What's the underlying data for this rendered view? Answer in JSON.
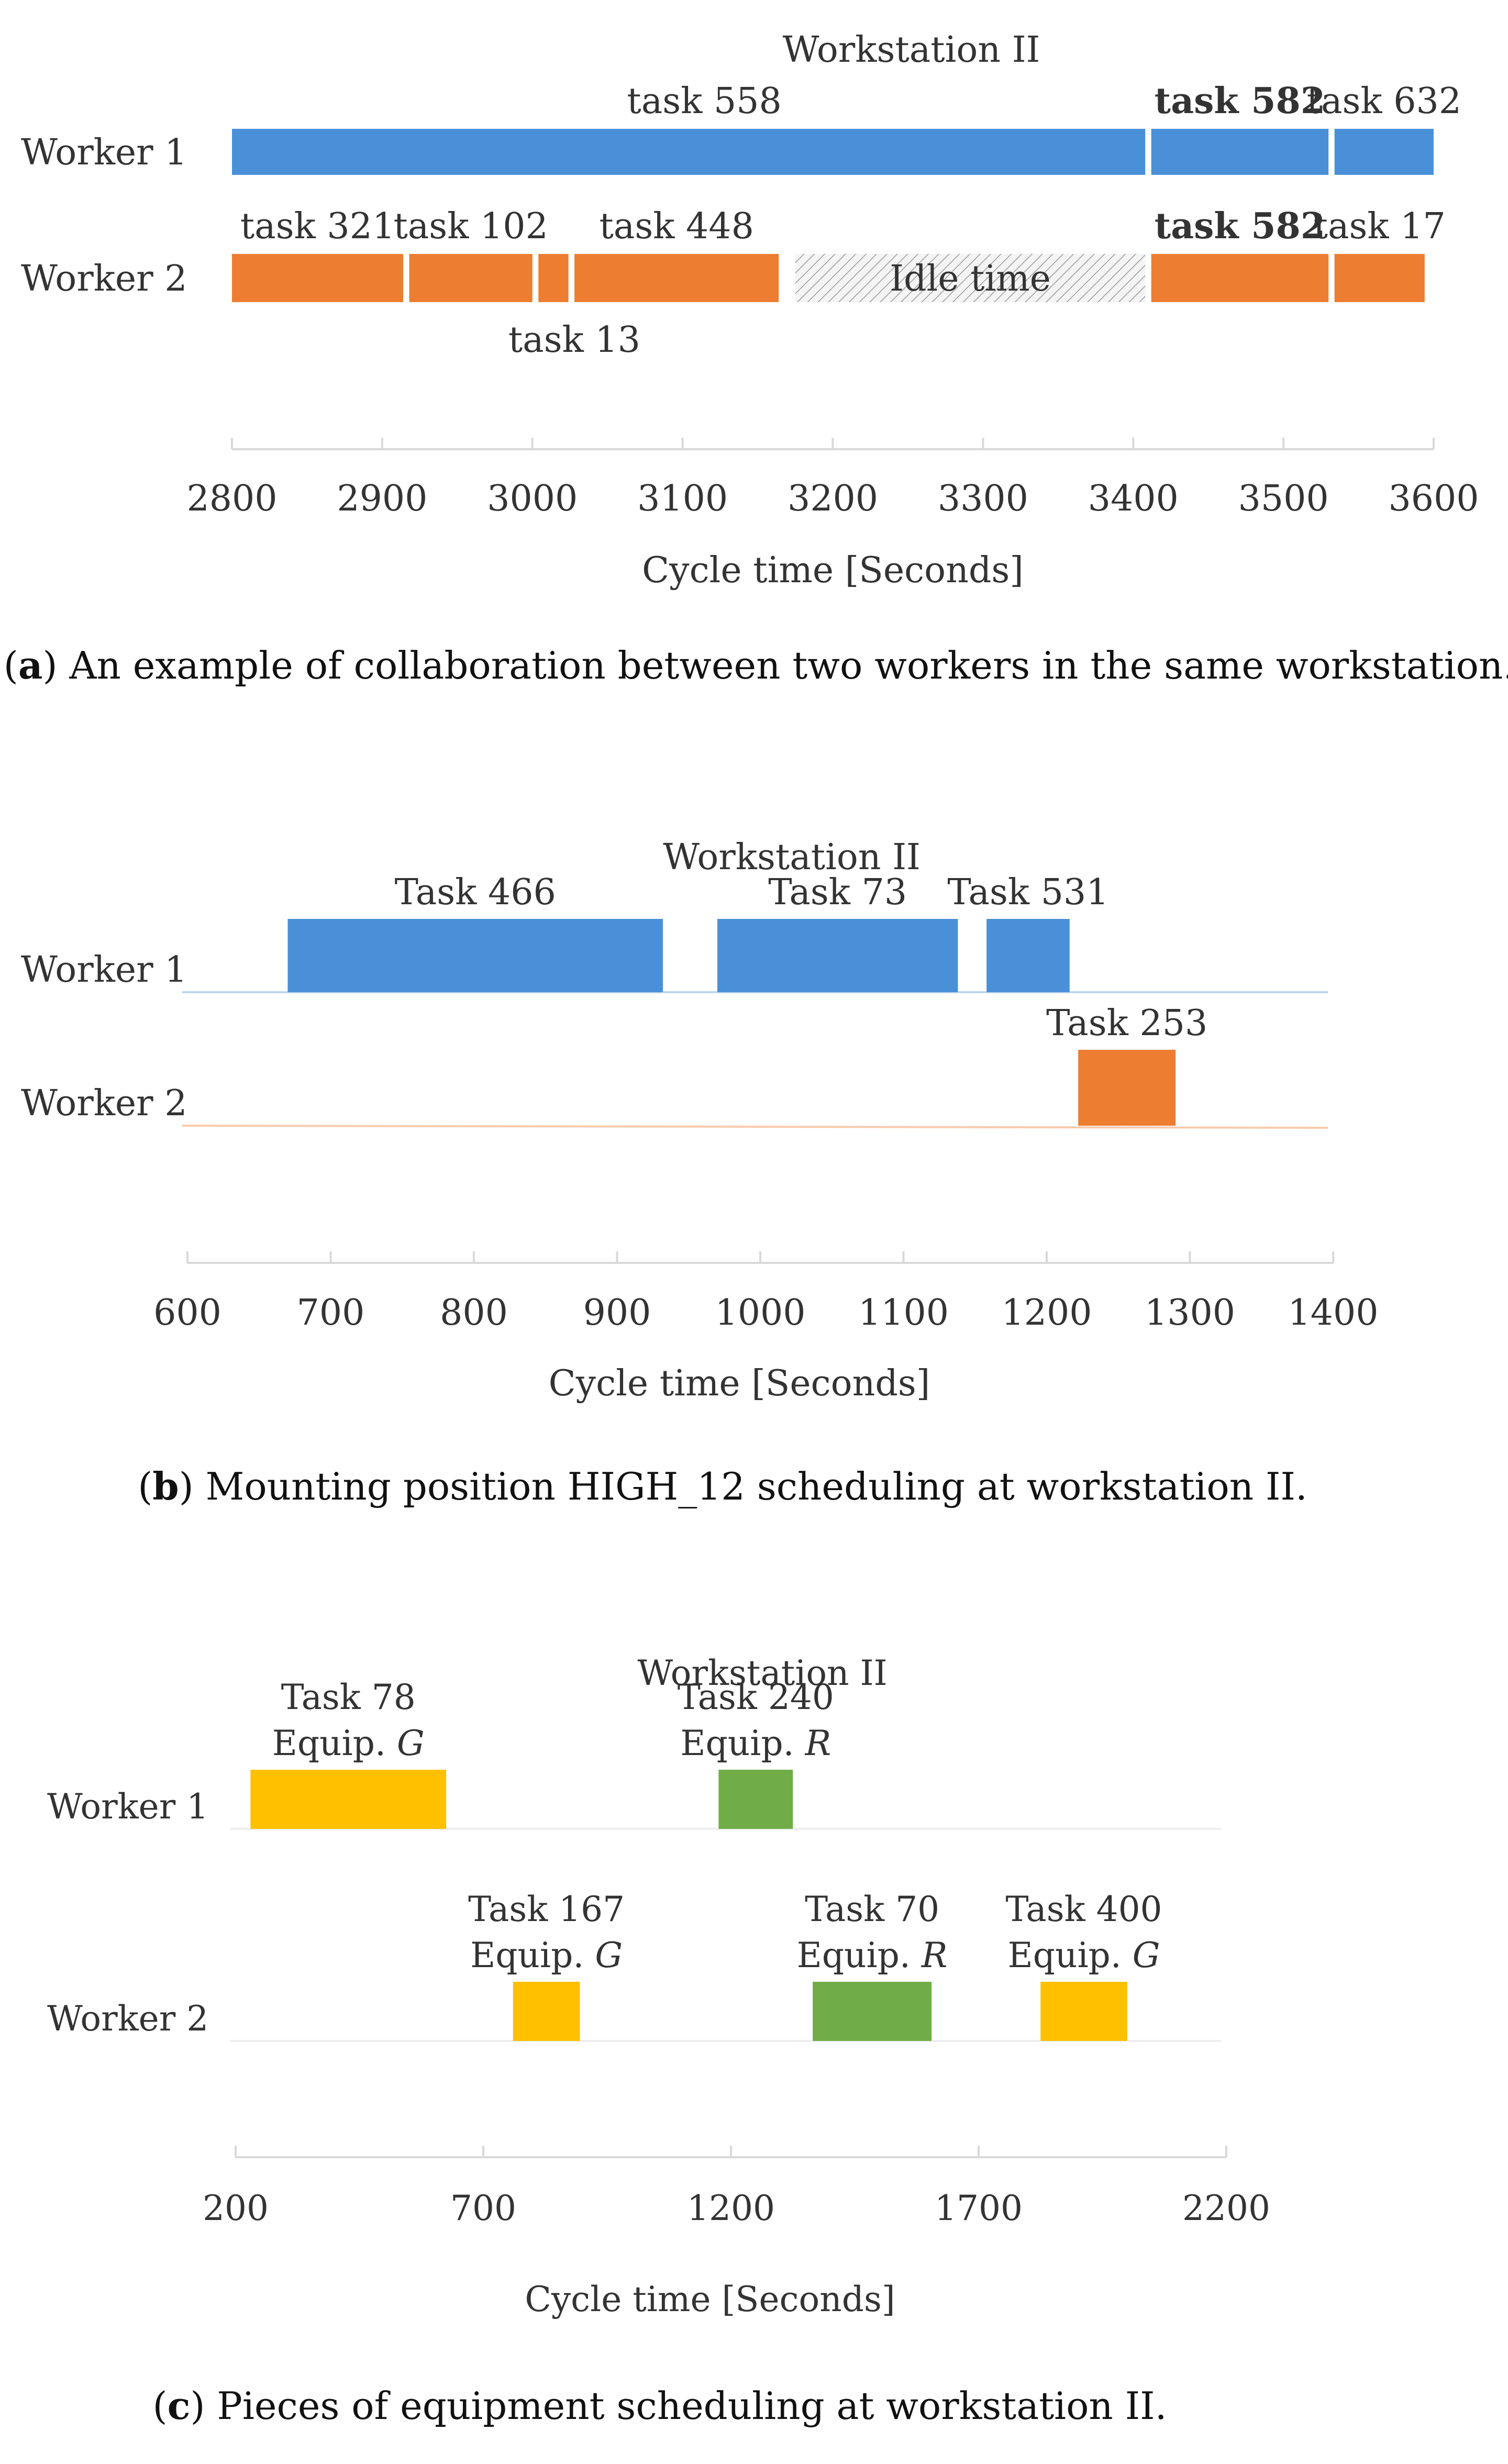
{
  "chart_data": [
    {
      "id": "a",
      "type": "gantt",
      "title": "Workstation II",
      "xlabel": "Cycle time [Seconds]",
      "xlim": [
        2800,
        3600
      ],
      "ticks": [
        2800,
        2900,
        3000,
        3100,
        3200,
        3300,
        3400,
        3500,
        3600
      ],
      "rows": [
        "Worker 1",
        "Worker 2"
      ],
      "tasks": [
        {
          "row": 0,
          "start": 2800,
          "end": 3408,
          "label": "task 558",
          "color": "#4a90d9",
          "label_pos": "above",
          "bold": false
        },
        {
          "row": 0,
          "start": 3412,
          "end": 3530,
          "label": "task 582",
          "color": "#4a90d9",
          "label_pos": "above",
          "bold": true
        },
        {
          "row": 0,
          "start": 3534,
          "end": 3600,
          "label": "task 632",
          "color": "#4a90d9",
          "label_pos": "above",
          "bold": false
        },
        {
          "row": 1,
          "start": 2800,
          "end": 2914,
          "label": "task 321",
          "color": "#ed7d31",
          "label_pos": "above",
          "bold": false
        },
        {
          "row": 1,
          "start": 2918,
          "end": 3000,
          "label": "task 102",
          "color": "#ed7d31",
          "label_pos": "above",
          "bold": false
        },
        {
          "row": 1,
          "start": 3004,
          "end": 3024,
          "label": "task 13",
          "color": "#ed7d31",
          "label_pos": "below",
          "bold": false
        },
        {
          "row": 1,
          "start": 3028,
          "end": 3164,
          "label": "task 448",
          "color": "#ed7d31",
          "label_pos": "above",
          "bold": false
        },
        {
          "row": 1,
          "start": 3412,
          "end": 3530,
          "label": "task 582",
          "color": "#ed7d31",
          "label_pos": "above",
          "bold": true
        },
        {
          "row": 1,
          "start": 3534,
          "end": 3594,
          "label": "task 17",
          "color": "#ed7d31",
          "label_pos": "above",
          "bold": false
        }
      ],
      "idle": [
        {
          "row": 1,
          "start": 3175,
          "end": 3408,
          "label": "Idle time"
        }
      ],
      "caption_letter": "a",
      "caption_text": " An example of collaboration between two workers in the same workstation."
    },
    {
      "id": "b",
      "type": "gantt",
      "title": "Workstation II",
      "xlabel": "Cycle time [Seconds]",
      "xlim": [
        600,
        1400
      ],
      "ticks": [
        600,
        700,
        800,
        900,
        1000,
        1100,
        1200,
        1300,
        1400
      ],
      "rows": [
        "Worker 1",
        "Worker 2"
      ],
      "row_line_colors": [
        "#bdd7ee",
        "#f8cbad"
      ],
      "tasks": [
        {
          "row": 0,
          "start": 670,
          "end": 932,
          "label": "Task 466",
          "color": "#4a90d9",
          "label_pos": "above",
          "bold": false
        },
        {
          "row": 0,
          "start": 970,
          "end": 1138,
          "label": "Task 73",
          "color": "#4a90d9",
          "label_pos": "above",
          "bold": false
        },
        {
          "row": 0,
          "start": 1158,
          "end": 1216,
          "label": "Task 531",
          "color": "#4a90d9",
          "label_pos": "above",
          "bold": false
        },
        {
          "row": 1,
          "start": 1222,
          "end": 1290,
          "label": "Task 253",
          "color": "#ed7d31",
          "label_pos": "above",
          "bold": false
        }
      ],
      "caption_letter": "b",
      "caption_text": " Mounting position HIGH_12 scheduling at workstation II."
    },
    {
      "id": "c",
      "type": "gantt",
      "title": "Workstation II",
      "xlabel": "Cycle time [Seconds]",
      "xlim": [
        200,
        2200
      ],
      "ticks": [
        200,
        700,
        1200,
        1700,
        2200
      ],
      "rows": [
        "Worker 1",
        "Worker 2"
      ],
      "row_line_colors": [
        "#eeeeee",
        "#eeeeee"
      ],
      "tasks": [
        {
          "row": 0,
          "start": 230,
          "end": 625,
          "label": "Task 78",
          "equip": "G",
          "color": "#ffc000",
          "label_pos": "above",
          "bold": false
        },
        {
          "row": 0,
          "start": 1175,
          "end": 1325,
          "label": "Task 240",
          "equip": "R",
          "color": "#70ad47",
          "label_pos": "above",
          "bold": false
        },
        {
          "row": 1,
          "start": 760,
          "end": 895,
          "label": "Task 167",
          "equip": "G",
          "color": "#ffc000",
          "label_pos": "above",
          "bold": false
        },
        {
          "row": 1,
          "start": 1365,
          "end": 1605,
          "label": "Task 70",
          "equip": "R",
          "color": "#70ad47",
          "label_pos": "above",
          "bold": false
        },
        {
          "row": 1,
          "start": 1825,
          "end": 2000,
          "label": "Task 400",
          "equip": "G",
          "color": "#ffc000",
          "label_pos": "above",
          "bold": false
        }
      ],
      "equip_prefix": "Equip. ",
      "caption_letter": "c",
      "caption_text": " Pieces of equipment scheduling at workstation II."
    }
  ]
}
